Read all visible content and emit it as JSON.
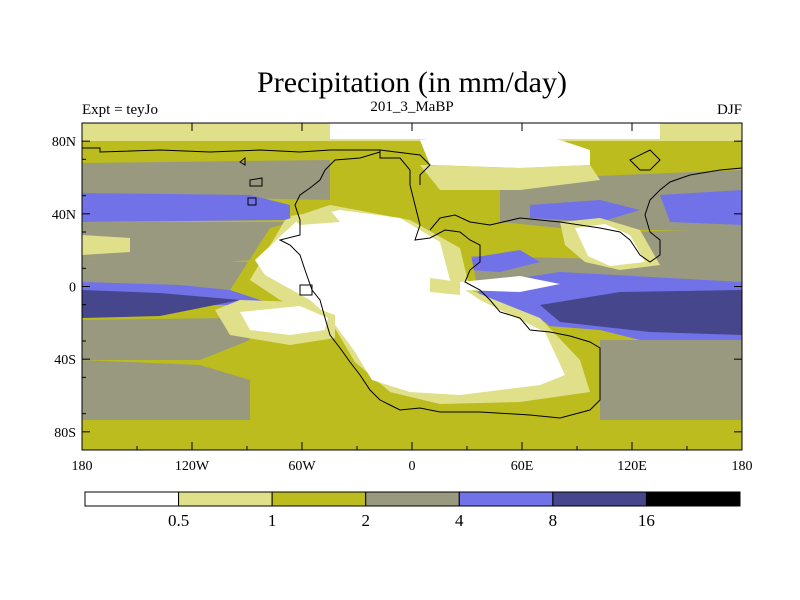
{
  "chart_data": {
    "type": "heatmap",
    "title": "Precipitation (in mm/day)",
    "left_label": "Expt = teyJo",
    "center_label": "201_3_MaBP",
    "right_label": "DJF",
    "x_ticks": [
      "180",
      "120W",
      "60W",
      "0",
      "60E",
      "120E",
      "180"
    ],
    "x_range": [
      -180,
      180
    ],
    "y_ticks": [
      "80N",
      "40N",
      "0",
      "40S",
      "80S"
    ],
    "y_range": [
      -90,
      90
    ],
    "levels": [
      "0.5",
      "1",
      "2",
      "4",
      "8",
      "16"
    ],
    "colors": [
      "#ffffff",
      "#e0e08a",
      "#bcbc1f",
      "#999980",
      "#7272e8",
      "#46468c",
      "#000000"
    ],
    "description_bands": [
      {
        "lat": 85,
        "level": 1
      },
      {
        "lat": 70,
        "level": 2
      },
      {
        "lat": 55,
        "level": 3
      },
      {
        "lat": 40,
        "level": 4
      },
      {
        "lat": 25,
        "level": 3
      },
      {
        "lat": 10,
        "level": 4
      },
      {
        "lat": -5,
        "level": 5
      },
      {
        "lat": -20,
        "level": 4
      },
      {
        "lat": -40,
        "level": 3
      },
      {
        "lat": -60,
        "level": 3
      },
      {
        "lat": -80,
        "level": 2
      }
    ]
  }
}
